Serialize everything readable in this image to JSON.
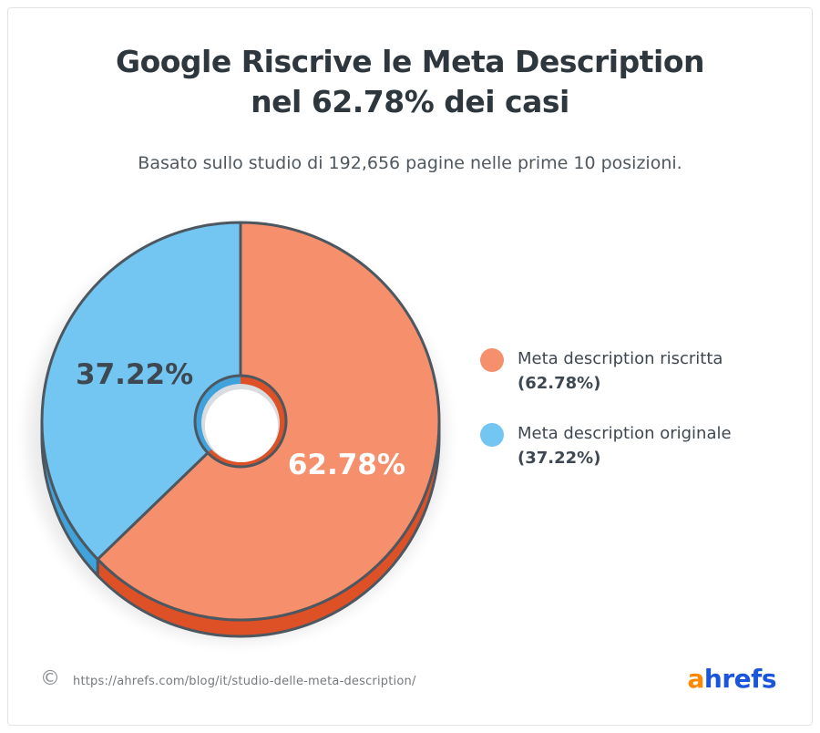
{
  "page": {
    "title_line1": "Google Riscrive le Meta Description",
    "title_line2": "nel 62.78% dei casi",
    "subtitle": "Basato sullo studio di 192,656 pagine nelle prime 10 posizioni."
  },
  "chart_data": {
    "type": "pie",
    "title": "Google Riscrive le Meta Description nel 62.78% dei casi",
    "subtitle": "Basato sullo studio di 192,656 pagine nelle prime 10 posizioni.",
    "start_angle_deg": 0,
    "direction": "clockwise",
    "donut": true,
    "slices": [
      {
        "label": "Meta description riscritta",
        "value": 62.78,
        "display": "62.78%",
        "color": "#F68F6C",
        "side_color": "#DE5127",
        "label_color": "#FFFFFF"
      },
      {
        "label": "Meta description originale",
        "value": 37.22,
        "display": "37.22%",
        "color": "#72C6F1",
        "side_color": "#41A3DB",
        "label_color": "#3E4852"
      }
    ],
    "legend_position": "right",
    "legend": [
      {
        "label": "Meta description riscritta",
        "pct": "(62.78%)",
        "color": "#F68F6C"
      },
      {
        "label": "Meta description originale",
        "pct": "(37.22%)",
        "color": "#72C6F1"
      }
    ],
    "outline_color": "#4D575F"
  },
  "footer": {
    "copyright_symbol": "©",
    "source_url": "https://ahrefs.com/blog/it/studio-delle-meta-description/",
    "logo": {
      "part1": "a",
      "part2": "hrefs",
      "part1_color": "#FF8800",
      "part2_color": "#1A56DB"
    }
  }
}
